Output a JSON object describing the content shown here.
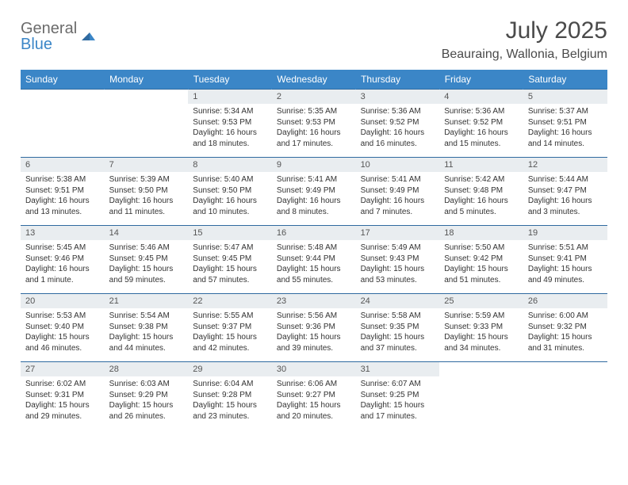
{
  "brand": {
    "general": "General",
    "blue": "Blue"
  },
  "title": "July 2025",
  "location": "Beauraing, Wallonia, Belgium",
  "style": {
    "header_bg": "#3b86c7",
    "header_border": "#2f6aa0",
    "daynum_bg": "#e9edf0",
    "page_bg": "#ffffff",
    "text_color": "#333333",
    "title_color": "#4a4a4a",
    "th_fontsize": 12,
    "cell_fontsize": 10,
    "title_fontsize": 30,
    "location_fontsize": 16
  },
  "weekdays": [
    "Sunday",
    "Monday",
    "Tuesday",
    "Wednesday",
    "Thursday",
    "Friday",
    "Saturday"
  ],
  "weeks": [
    [
      null,
      null,
      {
        "n": "1",
        "sr": "Sunrise: 5:34 AM",
        "ss": "Sunset: 9:53 PM",
        "d1": "Daylight: 16 hours",
        "d2": "and 18 minutes."
      },
      {
        "n": "2",
        "sr": "Sunrise: 5:35 AM",
        "ss": "Sunset: 9:53 PM",
        "d1": "Daylight: 16 hours",
        "d2": "and 17 minutes."
      },
      {
        "n": "3",
        "sr": "Sunrise: 5:36 AM",
        "ss": "Sunset: 9:52 PM",
        "d1": "Daylight: 16 hours",
        "d2": "and 16 minutes."
      },
      {
        "n": "4",
        "sr": "Sunrise: 5:36 AM",
        "ss": "Sunset: 9:52 PM",
        "d1": "Daylight: 16 hours",
        "d2": "and 15 minutes."
      },
      {
        "n": "5",
        "sr": "Sunrise: 5:37 AM",
        "ss": "Sunset: 9:51 PM",
        "d1": "Daylight: 16 hours",
        "d2": "and 14 minutes."
      }
    ],
    [
      {
        "n": "6",
        "sr": "Sunrise: 5:38 AM",
        "ss": "Sunset: 9:51 PM",
        "d1": "Daylight: 16 hours",
        "d2": "and 13 minutes."
      },
      {
        "n": "7",
        "sr": "Sunrise: 5:39 AM",
        "ss": "Sunset: 9:50 PM",
        "d1": "Daylight: 16 hours",
        "d2": "and 11 minutes."
      },
      {
        "n": "8",
        "sr": "Sunrise: 5:40 AM",
        "ss": "Sunset: 9:50 PM",
        "d1": "Daylight: 16 hours",
        "d2": "and 10 minutes."
      },
      {
        "n": "9",
        "sr": "Sunrise: 5:41 AM",
        "ss": "Sunset: 9:49 PM",
        "d1": "Daylight: 16 hours",
        "d2": "and 8 minutes."
      },
      {
        "n": "10",
        "sr": "Sunrise: 5:41 AM",
        "ss": "Sunset: 9:49 PM",
        "d1": "Daylight: 16 hours",
        "d2": "and 7 minutes."
      },
      {
        "n": "11",
        "sr": "Sunrise: 5:42 AM",
        "ss": "Sunset: 9:48 PM",
        "d1": "Daylight: 16 hours",
        "d2": "and 5 minutes."
      },
      {
        "n": "12",
        "sr": "Sunrise: 5:44 AM",
        "ss": "Sunset: 9:47 PM",
        "d1": "Daylight: 16 hours",
        "d2": "and 3 minutes."
      }
    ],
    [
      {
        "n": "13",
        "sr": "Sunrise: 5:45 AM",
        "ss": "Sunset: 9:46 PM",
        "d1": "Daylight: 16 hours",
        "d2": "and 1 minute."
      },
      {
        "n": "14",
        "sr": "Sunrise: 5:46 AM",
        "ss": "Sunset: 9:45 PM",
        "d1": "Daylight: 15 hours",
        "d2": "and 59 minutes."
      },
      {
        "n": "15",
        "sr": "Sunrise: 5:47 AM",
        "ss": "Sunset: 9:45 PM",
        "d1": "Daylight: 15 hours",
        "d2": "and 57 minutes."
      },
      {
        "n": "16",
        "sr": "Sunrise: 5:48 AM",
        "ss": "Sunset: 9:44 PM",
        "d1": "Daylight: 15 hours",
        "d2": "and 55 minutes."
      },
      {
        "n": "17",
        "sr": "Sunrise: 5:49 AM",
        "ss": "Sunset: 9:43 PM",
        "d1": "Daylight: 15 hours",
        "d2": "and 53 minutes."
      },
      {
        "n": "18",
        "sr": "Sunrise: 5:50 AM",
        "ss": "Sunset: 9:42 PM",
        "d1": "Daylight: 15 hours",
        "d2": "and 51 minutes."
      },
      {
        "n": "19",
        "sr": "Sunrise: 5:51 AM",
        "ss": "Sunset: 9:41 PM",
        "d1": "Daylight: 15 hours",
        "d2": "and 49 minutes."
      }
    ],
    [
      {
        "n": "20",
        "sr": "Sunrise: 5:53 AM",
        "ss": "Sunset: 9:40 PM",
        "d1": "Daylight: 15 hours",
        "d2": "and 46 minutes."
      },
      {
        "n": "21",
        "sr": "Sunrise: 5:54 AM",
        "ss": "Sunset: 9:38 PM",
        "d1": "Daylight: 15 hours",
        "d2": "and 44 minutes."
      },
      {
        "n": "22",
        "sr": "Sunrise: 5:55 AM",
        "ss": "Sunset: 9:37 PM",
        "d1": "Daylight: 15 hours",
        "d2": "and 42 minutes."
      },
      {
        "n": "23",
        "sr": "Sunrise: 5:56 AM",
        "ss": "Sunset: 9:36 PM",
        "d1": "Daylight: 15 hours",
        "d2": "and 39 minutes."
      },
      {
        "n": "24",
        "sr": "Sunrise: 5:58 AM",
        "ss": "Sunset: 9:35 PM",
        "d1": "Daylight: 15 hours",
        "d2": "and 37 minutes."
      },
      {
        "n": "25",
        "sr": "Sunrise: 5:59 AM",
        "ss": "Sunset: 9:33 PM",
        "d1": "Daylight: 15 hours",
        "d2": "and 34 minutes."
      },
      {
        "n": "26",
        "sr": "Sunrise: 6:00 AM",
        "ss": "Sunset: 9:32 PM",
        "d1": "Daylight: 15 hours",
        "d2": "and 31 minutes."
      }
    ],
    [
      {
        "n": "27",
        "sr": "Sunrise: 6:02 AM",
        "ss": "Sunset: 9:31 PM",
        "d1": "Daylight: 15 hours",
        "d2": "and 29 minutes."
      },
      {
        "n": "28",
        "sr": "Sunrise: 6:03 AM",
        "ss": "Sunset: 9:29 PM",
        "d1": "Daylight: 15 hours",
        "d2": "and 26 minutes."
      },
      {
        "n": "29",
        "sr": "Sunrise: 6:04 AM",
        "ss": "Sunset: 9:28 PM",
        "d1": "Daylight: 15 hours",
        "d2": "and 23 minutes."
      },
      {
        "n": "30",
        "sr": "Sunrise: 6:06 AM",
        "ss": "Sunset: 9:27 PM",
        "d1": "Daylight: 15 hours",
        "d2": "and 20 minutes."
      },
      {
        "n": "31",
        "sr": "Sunrise: 6:07 AM",
        "ss": "Sunset: 9:25 PM",
        "d1": "Daylight: 15 hours",
        "d2": "and 17 minutes."
      },
      null,
      null
    ]
  ]
}
